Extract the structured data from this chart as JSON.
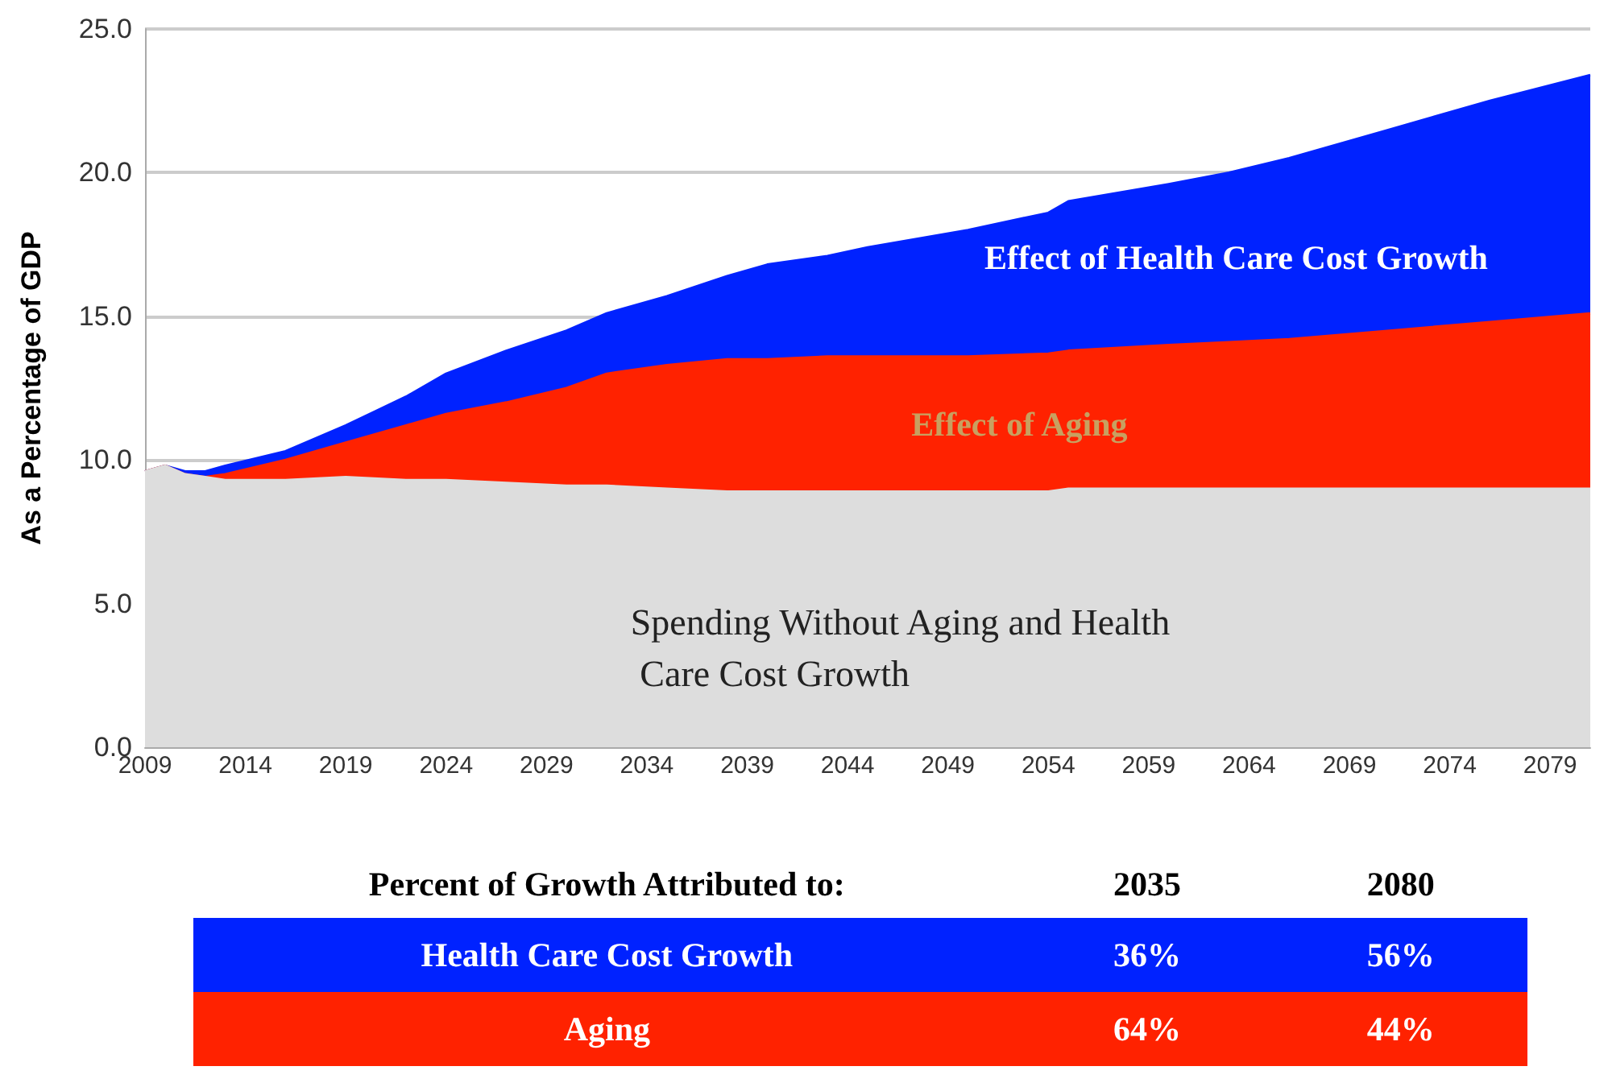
{
  "chart_data": {
    "type": "area",
    "stacked": true,
    "ylabel": "As a Percentage of GDP",
    "x": [
      2009,
      2010,
      2011,
      2012,
      2013,
      2016,
      2019,
      2022,
      2024,
      2027,
      2030,
      2032,
      2035,
      2038,
      2040,
      2043,
      2045,
      2050,
      2054,
      2055,
      2060,
      2063,
      2066,
      2071,
      2076,
      2081
    ],
    "series": [
      {
        "name": "Spending Without Aging and Health Care Cost Growth",
        "color": "#dddddd",
        "values": [
          9.6,
          9.8,
          9.5,
          9.4,
          9.3,
          9.3,
          9.4,
          9.3,
          9.3,
          9.2,
          9.1,
          9.1,
          9.0,
          8.9,
          8.9,
          8.9,
          8.9,
          8.9,
          8.9,
          9.0,
          9.0,
          9.0,
          9.0,
          9.0,
          9.0,
          9.0
        ]
      },
      {
        "name": "Effect of Aging",
        "color": "#ff2200",
        "values": [
          0,
          0,
          0,
          0,
          0.2,
          0.7,
          1.2,
          1.9,
          2.3,
          2.8,
          3.4,
          3.9,
          4.3,
          4.6,
          4.6,
          4.7,
          4.7,
          4.7,
          4.8,
          4.8,
          5.0,
          5.1,
          5.2,
          5.5,
          5.8,
          6.1
        ]
      },
      {
        "name": "Effect of Health Care Cost Growth",
        "color": "#0022ff",
        "values": [
          0,
          0,
          0.1,
          0.2,
          0.3,
          0.3,
          0.6,
          1.0,
          1.4,
          1.8,
          2.0,
          2.1,
          2.4,
          2.9,
          3.3,
          3.5,
          3.8,
          4.4,
          4.9,
          5.2,
          5.6,
          5.9,
          6.3,
          7.0,
          7.7,
          8.3
        ]
      }
    ],
    "xlim": [
      2009,
      2081
    ],
    "xticks": [
      2009,
      2014,
      2019,
      2024,
      2029,
      2034,
      2039,
      2044,
      2049,
      2054,
      2059,
      2064,
      2069,
      2074,
      2079
    ],
    "ylim": [
      0,
      25
    ],
    "yticks": [
      {
        "value": 0,
        "label": "0.0"
      },
      {
        "value": 5,
        "label": "5.0"
      },
      {
        "value": 10,
        "label": "10.0"
      },
      {
        "value": 15,
        "label": "15.0"
      },
      {
        "value": 20,
        "label": "20.0"
      },
      {
        "value": 25,
        "label": "25.0"
      }
    ],
    "grid": "y",
    "legend": false,
    "annotations": [
      "Percent of Growth Attributed to:",
      "2035",
      "2080",
      "Health Care Cost Growth",
      "36%",
      "56%",
      "Aging",
      "64%",
      "44%"
    ]
  }
}
